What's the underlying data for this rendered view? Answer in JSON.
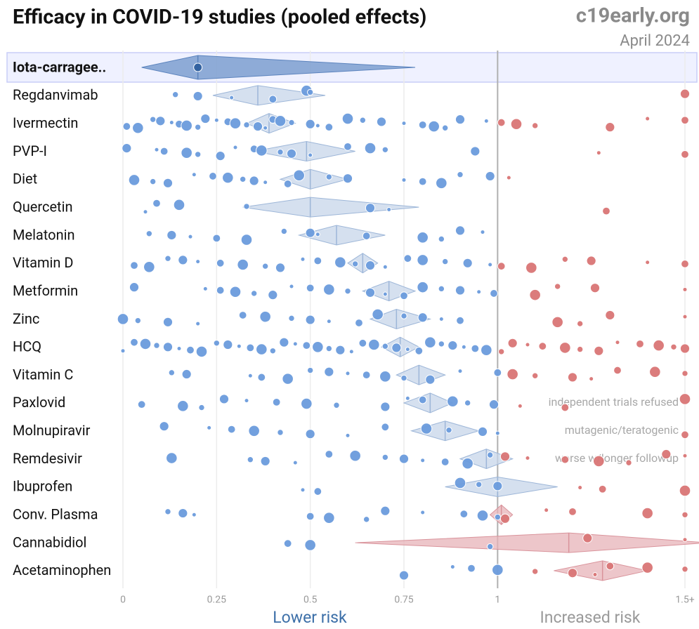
{
  "chart_data": {
    "type": "forest",
    "title": "Efficacy in COVID-19 studies (pooled effects)",
    "source": "c19early.org",
    "date": "April 2024",
    "xlabel_low": "Lower risk",
    "xlabel_high": "Increased risk",
    "xlim": [
      0,
      1.5
    ],
    "xticks": [
      0,
      0.25,
      0.5,
      0.75,
      1,
      {
        "value": 1.5,
        "label": "1.5+"
      }
    ],
    "reference": 1,
    "highlight": 0,
    "colors": {
      "lower": "#6a9bdc",
      "higher": "#d97575",
      "diamond_lower": "#c7d6ea",
      "diamond_higher": "#e7b3b8"
    },
    "series": [
      {
        "name": "Iota-carragee..",
        "effect": 0.2,
        "low": 0.05,
        "high": 0.78,
        "values": [
          0.2
        ]
      },
      {
        "name": "Regdanvimab",
        "effect": 0.36,
        "low": 0.24,
        "high": 0.54,
        "values": [
          0.14,
          0.2,
          0.29,
          0.4,
          0.49,
          0.5,
          1.5
        ]
      },
      {
        "name": "Ivermectin",
        "effect": 0.39,
        "low": 0.33,
        "high": 0.46,
        "values": [
          0.01,
          0.04,
          0.08,
          0.1,
          0.13,
          0.15,
          0.17,
          0.2,
          0.22,
          0.25,
          0.28,
          0.3,
          0.33,
          0.36,
          0.38,
          0.4,
          0.42,
          0.45,
          0.5,
          0.52,
          0.55,
          0.6,
          0.64,
          0.69,
          0.75,
          0.8,
          0.83,
          0.86,
          0.9,
          0.97,
          1.01,
          1.05,
          1.1,
          1.3,
          1.4,
          1.5
        ]
      },
      {
        "name": "PVP-I",
        "effect": 0.49,
        "low": 0.35,
        "high": 0.62,
        "values": [
          0.01,
          0.09,
          0.11,
          0.17,
          0.2,
          0.26,
          0.3,
          0.35,
          0.37,
          0.42,
          0.45,
          0.5,
          0.6,
          0.66,
          0.7,
          0.94,
          1.27,
          1.5
        ]
      },
      {
        "name": "Diet",
        "effect": 0.5,
        "low": 0.42,
        "high": 0.6,
        "values": [
          0.03,
          0.08,
          0.12,
          0.19,
          0.24,
          0.28,
          0.32,
          0.35,
          0.38,
          0.44,
          0.47,
          0.55,
          0.6,
          0.75,
          0.8,
          0.85,
          0.9,
          0.98,
          1.03
        ]
      },
      {
        "name": "Quercetin",
        "effect": 0.5,
        "low": 0.32,
        "high": 0.79,
        "values": [
          0.06,
          0.09,
          0.15,
          0.33,
          0.66,
          0.71,
          1.29
        ]
      },
      {
        "name": "Melatonin",
        "effect": 0.57,
        "low": 0.47,
        "high": 0.7,
        "values": [
          0.07,
          0.13,
          0.18,
          0.25,
          0.33,
          0.43,
          0.5,
          0.52,
          0.65,
          0.8,
          0.85,
          0.9,
          0.96
        ]
      },
      {
        "name": "Vitamin D",
        "effect": 0.64,
        "low": 0.6,
        "high": 0.68,
        "values": [
          0.03,
          0.07,
          0.12,
          0.16,
          0.2,
          0.26,
          0.32,
          0.38,
          0.42,
          0.48,
          0.52,
          0.58,
          0.62,
          0.66,
          0.7,
          0.76,
          0.8,
          0.86,
          0.92,
          0.98,
          1.01,
          1.09,
          1.18,
          1.25,
          1.4,
          1.5
        ]
      },
      {
        "name": "Metformin",
        "effect": 0.71,
        "low": 0.64,
        "high": 0.78,
        "values": [
          0.03,
          0.22,
          0.26,
          0.3,
          0.35,
          0.4,
          0.45,
          0.5,
          0.55,
          0.6,
          0.66,
          0.7,
          0.75,
          0.8,
          0.85,
          0.9,
          0.95,
          0.99,
          1.1,
          1.16,
          1.26,
          1.5
        ]
      },
      {
        "name": "Zinc",
        "effect": 0.73,
        "low": 0.66,
        "high": 0.82,
        "values": [
          0.0,
          0.04,
          0.12,
          0.2,
          0.32,
          0.38,
          0.45,
          0.5,
          0.55,
          0.63,
          0.68,
          0.75,
          0.8,
          0.85,
          0.9,
          1.16,
          1.22,
          1.3,
          1.5
        ]
      },
      {
        "name": "HCQ",
        "effect": 0.74,
        "low": 0.69,
        "high": 0.79,
        "values": [
          0.0,
          0.03,
          0.06,
          0.09,
          0.12,
          0.15,
          0.18,
          0.21,
          0.25,
          0.28,
          0.31,
          0.34,
          0.37,
          0.4,
          0.43,
          0.46,
          0.49,
          0.52,
          0.55,
          0.58,
          0.61,
          0.64,
          0.67,
          0.7,
          0.73,
          0.76,
          0.79,
          0.82,
          0.85,
          0.88,
          0.91,
          0.94,
          0.97,
          1.01,
          1.04,
          1.08,
          1.12,
          1.18,
          1.22,
          1.27,
          1.32,
          1.38,
          1.43,
          1.47,
          1.5
        ]
      },
      {
        "name": "Vitamin C",
        "effect": 0.79,
        "low": 0.73,
        "high": 0.86,
        "values": [
          0.13,
          0.17,
          0.34,
          0.37,
          0.44,
          0.5,
          0.55,
          0.6,
          0.65,
          0.7,
          0.75,
          0.82,
          0.9,
          1.0,
          1.04,
          1.1,
          1.2,
          1.25,
          1.32,
          1.42,
          1.5
        ]
      },
      {
        "name": "Paxlovid",
        "effect": 0.82,
        "low": 0.75,
        "high": 0.88,
        "annotation": "independent trials refused",
        "values": [
          0.05,
          0.16,
          0.21,
          0.27,
          0.33,
          0.41,
          0.49,
          0.57,
          0.7,
          0.76,
          0.8,
          0.88,
          0.92,
          0.99,
          1.06,
          1.18,
          1.5
        ]
      },
      {
        "name": "Molnupiravir",
        "effect": 0.86,
        "low": 0.77,
        "high": 0.95,
        "annotation": "mutagenic/teratogenic",
        "values": [
          0.11,
          0.23,
          0.29,
          0.35,
          0.42,
          0.5,
          0.6,
          0.7,
          0.81,
          0.87,
          0.96,
          1.0,
          1.5
        ]
      },
      {
        "name": "Remdesivir",
        "effect": 0.97,
        "low": 0.9,
        "high": 1.04,
        "annotation": "worse w/longer followup",
        "values": [
          0.13,
          0.34,
          0.38,
          0.46,
          0.55,
          0.62,
          0.7,
          0.75,
          0.8,
          0.86,
          0.92,
          0.98,
          1.02,
          1.08,
          1.18,
          1.27,
          1.35,
          1.45,
          1.5
        ]
      },
      {
        "name": "Ibuprofen",
        "effect": 1.0,
        "low": 0.86,
        "high": 1.16,
        "values": [
          0.48,
          0.52,
          0.9,
          0.95,
          1.0,
          1.22,
          1.28,
          1.5
        ]
      },
      {
        "name": "Conv. Plasma",
        "effect": 1.01,
        "low": 0.98,
        "high": 1.04,
        "values": [
          0.12,
          0.16,
          0.19,
          0.5,
          0.55,
          0.65,
          0.7,
          0.8,
          0.91,
          0.96,
          1.0,
          1.02,
          1.13,
          1.2,
          1.4,
          1.5
        ]
      },
      {
        "name": "Cannabidiol",
        "effect": 1.19,
        "low": 0.62,
        "high": 1.56,
        "values": [
          0.44,
          0.5,
          0.98,
          1.24,
          1.5
        ]
      },
      {
        "name": "Acetaminophen",
        "effect": 1.28,
        "low": 1.15,
        "high": 1.4,
        "values": [
          0.75,
          0.88,
          0.93,
          1.0,
          1.1,
          1.2,
          1.26,
          1.3,
          1.4,
          1.5
        ]
      }
    ]
  }
}
